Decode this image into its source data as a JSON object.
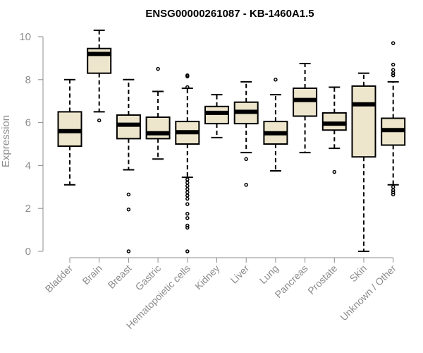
{
  "chart_data": {
    "type": "boxplot",
    "title": "ENSG00000261087 - KB-1460A1.5",
    "ylabel": "Expression",
    "ylim": [
      0,
      10.4
    ],
    "yticks": [
      "0",
      "2",
      "4",
      "6",
      "8",
      "10"
    ],
    "colors": {
      "box_fill": "#ede6cc",
      "stroke": "#000000",
      "axis": "#8c8c8c"
    },
    "categories": [
      "Bladder",
      "Brain",
      "Breast",
      "Gastric",
      "Hematopoietic cells",
      "Kidney",
      "Liver",
      "Lung",
      "Pancreas",
      "Prostate",
      "Skin",
      "Unknown / Other"
    ],
    "boxes": [
      {
        "q1": 4.9,
        "median": 5.6,
        "q3": 6.5,
        "whisker_low": 3.1,
        "whisker_high": 8.0,
        "outliers": []
      },
      {
        "q1": 8.3,
        "median": 9.2,
        "q3": 9.45,
        "whisker_low": 6.5,
        "whisker_high": 10.3,
        "outliers": [
          6.1
        ]
      },
      {
        "q1": 5.25,
        "median": 5.9,
        "q3": 6.35,
        "whisker_low": 3.8,
        "whisker_high": 8.0,
        "outliers": [
          2.65,
          1.95,
          0.0
        ]
      },
      {
        "q1": 5.25,
        "median": 5.5,
        "q3": 6.25,
        "whisker_low": 4.3,
        "whisker_high": 7.45,
        "outliers": [
          8.5
        ]
      },
      {
        "q1": 5.0,
        "median": 5.55,
        "q3": 6.05,
        "whisker_low": 3.45,
        "whisker_high": 7.6,
        "outliers": [
          8.2,
          8.15,
          7.65,
          3.35,
          3.2,
          3.05,
          2.9,
          2.75,
          2.6,
          2.45,
          2.2,
          1.75,
          1.55,
          1.2,
          1.1,
          0.0
        ]
      },
      {
        "q1": 5.95,
        "median": 6.45,
        "q3": 6.75,
        "whisker_low": 5.3,
        "whisker_high": 7.3,
        "outliers": []
      },
      {
        "q1": 5.95,
        "median": 6.5,
        "q3": 6.95,
        "whisker_low": 4.6,
        "whisker_high": 7.9,
        "outliers": [
          4.3,
          3.1
        ]
      },
      {
        "q1": 5.0,
        "median": 5.5,
        "q3": 6.05,
        "whisker_low": 3.75,
        "whisker_high": 7.3,
        "outliers": [
          8.0
        ]
      },
      {
        "q1": 6.3,
        "median": 7.05,
        "q3": 7.6,
        "whisker_low": 4.6,
        "whisker_high": 8.75,
        "outliers": []
      },
      {
        "q1": 5.65,
        "median": 5.95,
        "q3": 6.45,
        "whisker_low": 4.8,
        "whisker_high": 7.65,
        "outliers": [
          3.7
        ]
      },
      {
        "q1": 4.4,
        "median": 6.85,
        "q3": 7.7,
        "whisker_low": 0.0,
        "whisker_high": 8.3,
        "outliers": []
      },
      {
        "q1": 4.95,
        "median": 5.65,
        "q3": 6.2,
        "whisker_low": 3.1,
        "whisker_high": 7.9,
        "outliers": [
          9.7,
          8.7,
          8.45,
          8.3,
          8.2,
          3.0,
          2.85,
          2.75,
          2.65
        ]
      }
    ]
  }
}
